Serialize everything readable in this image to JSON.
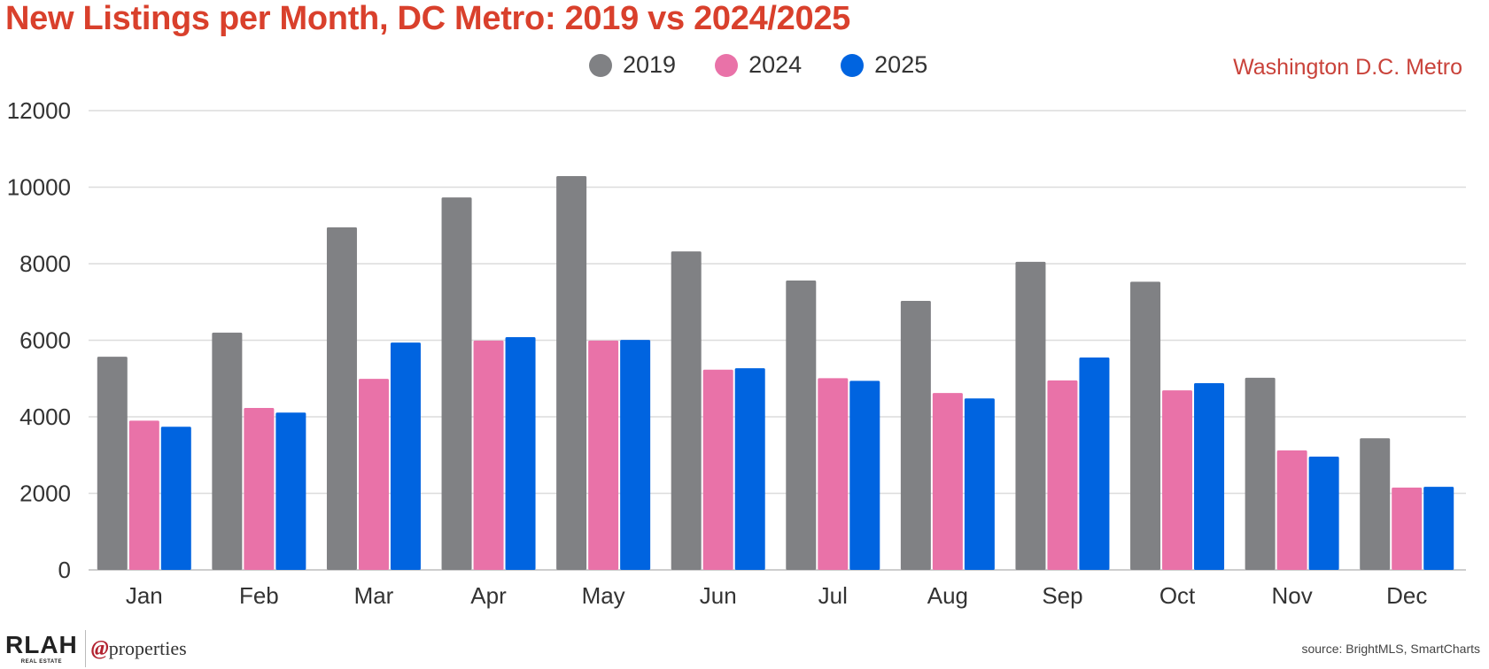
{
  "header": {
    "title": "New Listings per Month, DC Metro: 2019 vs 2024/2025",
    "subtitle": "Washington D.C. Metro"
  },
  "footer": {
    "logo_rlah": "RLAH",
    "logo_rlah_sub": "REAL ESTATE",
    "logo_at": "@",
    "logo_properties": "properties",
    "source": "source: BrightMLS, SmartCharts"
  },
  "chart_data": {
    "type": "bar",
    "title": "New Listings per Month, DC Metro: 2019 vs 2024/2025",
    "xlabel": "",
    "ylabel": "",
    "ylim": [
      0,
      12000
    ],
    "yticks": [
      0,
      2000,
      4000,
      6000,
      8000,
      10000,
      12000
    ],
    "grid": true,
    "legend_position": "top-center",
    "categories": [
      "Jan",
      "Feb",
      "Mar",
      "Apr",
      "May",
      "Jun",
      "Jul",
      "Aug",
      "Sep",
      "Oct",
      "Nov",
      "Dec"
    ],
    "series": [
      {
        "name": "2019",
        "color": "#808184",
        "values": [
          5570,
          6200,
          8950,
          9730,
          10290,
          8320,
          7560,
          7030,
          8050,
          7530,
          5020,
          3440
        ]
      },
      {
        "name": "2024",
        "color": "#e972a8",
        "values": [
          3900,
          4230,
          4990,
          5990,
          5990,
          5230,
          5010,
          4620,
          4950,
          4690,
          3120,
          2150
        ]
      },
      {
        "name": "2025",
        "color": "#0064e0",
        "values": [
          3740,
          4110,
          5940,
          6080,
          6010,
          5270,
          4940,
          4480,
          5550,
          4880,
          2960,
          2170
        ]
      }
    ]
  }
}
